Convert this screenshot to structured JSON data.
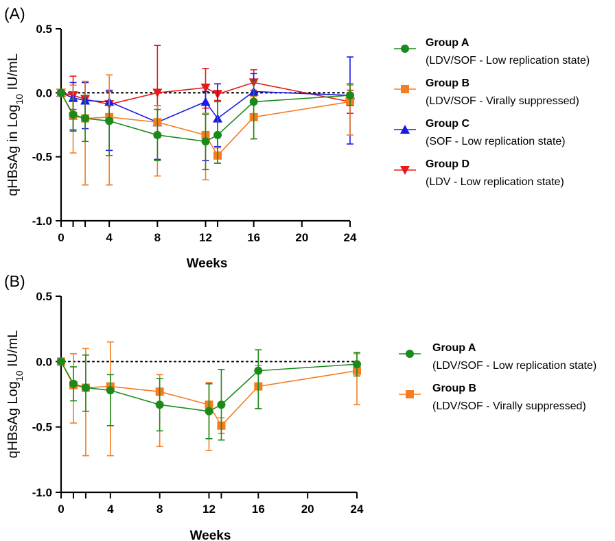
{
  "chart_data": [
    {
      "panel": "(A)",
      "type": "line",
      "xlabel": "Weeks",
      "ylabel_main": "qHBsAg in Log",
      "ylabel_sub": "10",
      "ylabel_unit": " IU/mL",
      "ylim": [
        -1.0,
        0.5
      ],
      "xlim": [
        0,
        24
      ],
      "x_ticks": [
        0,
        4,
        8,
        12,
        16,
        20,
        24
      ],
      "x_tick_labels": [
        "0",
        "4",
        "8",
        "12",
        "16",
        "20",
        "24"
      ],
      "y_ticks": [
        0.5,
        0.0,
        -0.5,
        -1.0
      ],
      "y_tick_labels": [
        "0.5",
        "0.0",
        "-0.5",
        "-1.0"
      ],
      "x_minor_ticks": [
        1,
        2,
        13
      ],
      "reference_line_y": 0,
      "grid": false,
      "legend_placement": "right",
      "series": [
        {
          "name": "Group A",
          "subtitle": "(LDV/SOF - Low replication state)",
          "color": "#1a8a1a",
          "marker": "circle",
          "x": [
            0,
            1,
            2,
            4,
            8,
            12,
            13,
            16,
            24
          ],
          "y": [
            0.0,
            -0.17,
            -0.2,
            -0.22,
            -0.33,
            -0.38,
            -0.33,
            -0.07,
            -0.02
          ],
          "err_low": [
            0.0,
            -0.3,
            -0.38,
            -0.49,
            -0.53,
            -0.6,
            -0.55,
            -0.36,
            -0.1
          ],
          "err_high": [
            0.0,
            -0.05,
            -0.02,
            -0.1,
            -0.13,
            -0.17,
            -0.07,
            0.09,
            0.07
          ]
        },
        {
          "name": "Group B",
          "subtitle": "(LDV/SOF - Virally suppressed)",
          "color": "#f57c1f",
          "marker": "square",
          "x": [
            0,
            1,
            2,
            4,
            8,
            12,
            13,
            16,
            24
          ],
          "y": [
            0.0,
            -0.18,
            -0.2,
            -0.19,
            -0.23,
            -0.33,
            -0.49,
            -0.19,
            -0.07
          ],
          "err_low": [
            0.0,
            -0.47,
            -0.72,
            -0.72,
            -0.65,
            -0.68,
            -0.55,
            -0.36,
            -0.33
          ],
          "err_high": [
            0.0,
            0.06,
            0.09,
            0.14,
            -0.1,
            -0.16,
            -0.43,
            -0.03,
            0.06
          ]
        },
        {
          "name": "Group C",
          "subtitle": "(SOF - Low replication state)",
          "color": "#1a1ae6",
          "marker": "triangle-up",
          "x": [
            0,
            1,
            2,
            4,
            8,
            12,
            13,
            16,
            24
          ],
          "y": [
            0.0,
            -0.04,
            -0.06,
            -0.07,
            -0.23,
            -0.07,
            -0.2,
            0.01,
            -0.02
          ],
          "err_low": [
            0.0,
            -0.29,
            -0.28,
            -0.45,
            -0.52,
            -0.53,
            -0.42,
            -0.02,
            -0.4
          ],
          "err_high": [
            0.0,
            0.08,
            0.08,
            0.02,
            -0.1,
            0.01,
            0.07,
            0.15,
            0.28
          ]
        },
        {
          "name": "Group D",
          "subtitle": "(LDV - Low replication state)",
          "color": "#e61a1a",
          "marker": "triangle-down",
          "x": [
            0,
            1,
            2,
            4,
            8,
            12,
            13,
            16,
            24
          ],
          "y": [
            0.0,
            -0.02,
            -0.05,
            -0.09,
            0.0,
            0.04,
            -0.01,
            0.08,
            -0.07
          ],
          "err_low": [
            0.0,
            -0.13,
            -0.2,
            -0.2,
            -0.35,
            -0.12,
            -0.06,
            0.02,
            -0.16
          ],
          "err_high": [
            0.0,
            0.13,
            0.08,
            0.01,
            0.37,
            0.19,
            0.07,
            0.18,
            0.02
          ]
        }
      ]
    },
    {
      "panel": "(B)",
      "type": "line",
      "xlabel": "Weeks",
      "ylabel_main": "qHBsAg Log",
      "ylabel_sub": "10",
      "ylabel_unit": " IU/mL",
      "ylim": [
        -1.0,
        0.5
      ],
      "xlim": [
        0,
        24
      ],
      "x_ticks": [
        0,
        4,
        8,
        12,
        16,
        20,
        24
      ],
      "x_tick_labels": [
        "0",
        "4",
        "8",
        "12",
        "16",
        "20",
        "24"
      ],
      "y_ticks": [
        0.5,
        0.0,
        -0.5,
        -1.0
      ],
      "y_tick_labels": [
        "0.5",
        "0.0",
        "-0.5",
        "-1.0"
      ],
      "x_minor_ticks": [
        1,
        2,
        13
      ],
      "reference_line_y": 0,
      "grid": false,
      "legend_placement": "right",
      "series": [
        {
          "name": "Group A",
          "subtitle": "(LDV/SOF - Low replication state)",
          "color": "#1a8a1a",
          "marker": "circle",
          "x": [
            0,
            1,
            2,
            4,
            8,
            12,
            13,
            16,
            24
          ],
          "y": [
            0.0,
            -0.17,
            -0.2,
            -0.22,
            -0.33,
            -0.38,
            -0.33,
            -0.07,
            -0.02
          ],
          "err_low": [
            0.0,
            -0.3,
            -0.38,
            -0.49,
            -0.53,
            -0.59,
            -0.6,
            -0.36,
            -0.11
          ],
          "err_high": [
            0.0,
            -0.04,
            0.05,
            -0.1,
            -0.13,
            -0.17,
            -0.06,
            0.09,
            0.07
          ]
        },
        {
          "name": "Group B",
          "subtitle": "(LDV/SOF - Virally suppressed)",
          "color": "#f57c1f",
          "marker": "square",
          "x": [
            0,
            1,
            2,
            4,
            8,
            12,
            13,
            16,
            24
          ],
          "y": [
            0.0,
            -0.18,
            -0.2,
            -0.19,
            -0.23,
            -0.33,
            -0.49,
            -0.19,
            -0.07
          ],
          "err_low": [
            0.0,
            -0.47,
            -0.72,
            -0.72,
            -0.65,
            -0.68,
            -0.55,
            -0.36,
            -0.33
          ],
          "err_high": [
            0.0,
            0.06,
            0.1,
            0.15,
            -0.1,
            -0.16,
            -0.43,
            -0.03,
            0.06
          ]
        }
      ]
    }
  ]
}
